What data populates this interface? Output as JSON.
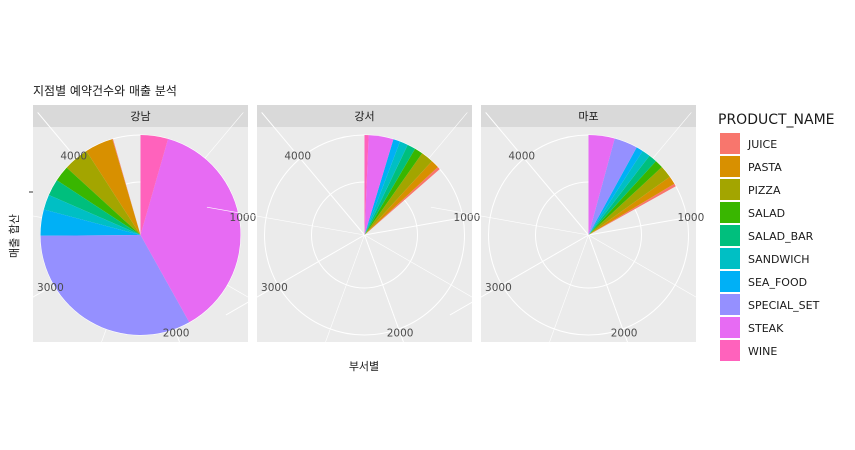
{
  "chart_data": {
    "type": "pie",
    "title": "지점별 예약건수와 매출 분석",
    "xlabel": "부서별",
    "ylabel": "매출 합산",
    "coord": "polar",
    "theta_axis": {
      "min": 0,
      "max": 4500,
      "ticks": [
        1000,
        2000,
        3000,
        4000
      ]
    },
    "legend": {
      "title": "PRODUCT_NAME",
      "position": "right"
    },
    "products": [
      "JUICE",
      "PASTA",
      "PIZZA",
      "SALAD",
      "SALAD_BAR",
      "SANDWICH",
      "SEA_FOOD",
      "SPECIAL_SET",
      "STEAK",
      "WINE"
    ],
    "colors": [
      "#F8766D",
      "#D89000",
      "#A3A500",
      "#39B600",
      "#00BF7D",
      "#00BFC4",
      "#00B0F6",
      "#9590FF",
      "#E76BF3",
      "#FF62BC"
    ],
    "panels": [
      {
        "label": "강남",
        "values": [
          5,
          205,
          185,
          115,
          120,
          110,
          190,
          1485,
          1685,
          200
        ]
      },
      {
        "label": "강서",
        "values": [
          20,
          60,
          90,
          60,
          60,
          60,
          50,
          0,
          180,
          30
        ]
      },
      {
        "label": "마포",
        "values": [
          20,
          60,
          90,
          60,
          60,
          60,
          50,
          170,
          190,
          0
        ]
      }
    ]
  }
}
